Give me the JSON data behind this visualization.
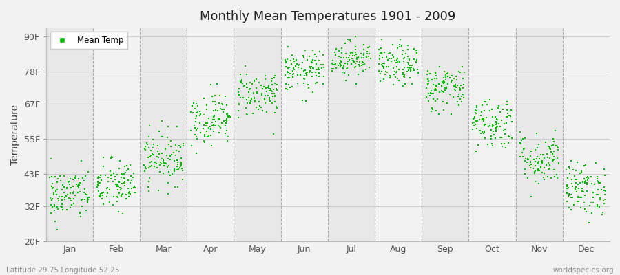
{
  "title": "Monthly Mean Temperatures 1901 - 2009",
  "ylabel": "Temperature",
  "ytick_labels": [
    "20F",
    "32F",
    "43F",
    "55F",
    "67F",
    "78F",
    "90F"
  ],
  "ytick_values": [
    20,
    32,
    43,
    55,
    67,
    78,
    90
  ],
  "ylim": [
    20,
    93
  ],
  "months": [
    "Jan",
    "Feb",
    "Mar",
    "Apr",
    "May",
    "Jun",
    "Jul",
    "Aug",
    "Sep",
    "Oct",
    "Nov",
    "Dec"
  ],
  "dot_color": "#00bb00",
  "bg_color": "#f2f2f2",
  "plot_bg_even": "#e8e8e8",
  "plot_bg_odd": "#f2f2f2",
  "legend_label": "Mean Temp",
  "footnote_left": "Latitude 29.75 Longitude 52.25",
  "footnote_right": "worldspecies.org",
  "num_years": 109,
  "monthly_means_F": [
    36.0,
    39.0,
    48.5,
    62.0,
    70.5,
    78.0,
    82.5,
    80.0,
    72.5,
    60.5,
    48.0,
    38.0
  ],
  "monthly_std_F": [
    4.5,
    4.5,
    4.5,
    4.5,
    4.0,
    3.5,
    3.0,
    3.5,
    4.0,
    4.5,
    4.5,
    4.5
  ],
  "seed": 42
}
